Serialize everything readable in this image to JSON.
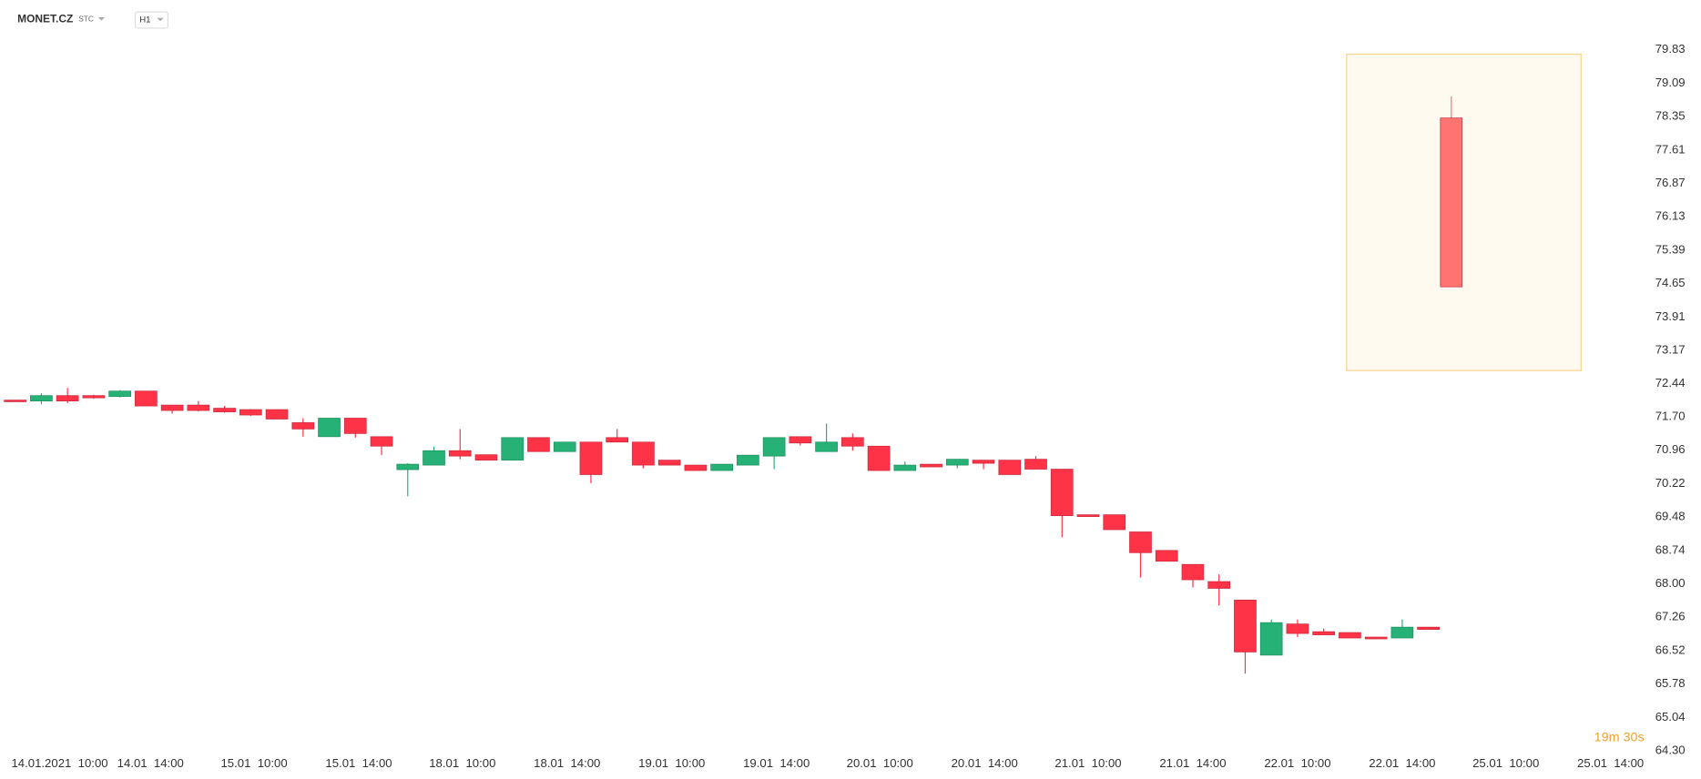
{
  "chart_data": {
    "type": "candlestick",
    "title": "MONET.CZ",
    "subtitle": "STC",
    "timeframe": "H1",
    "timer": "19m 30s",
    "up_color": "#26b276",
    "down_color": "#ff3347",
    "open": [
      72.07,
      72.05,
      72.17,
      72.17,
      72.15,
      72.27,
      71.96,
      71.96,
      71.89,
      71.86,
      71.86,
      71.57,
      71.26,
      71.67,
      71.26,
      70.53,
      70.63,
      70.95,
      70.86,
      70.74,
      71.24,
      70.93,
      71.14,
      71.24,
      71.14,
      70.74,
      70.63,
      70.51,
      70.63,
      70.83,
      71.26,
      70.93,
      71.24,
      71.05,
      70.51,
      70.65,
      70.63,
      70.74,
      70.74,
      70.76,
      70.54,
      69.53,
      69.53,
      69.15,
      68.74,
      68.43,
      68.05,
      67.64,
      66.42,
      67.11,
      66.94,
      66.92,
      66.82,
      66.8,
      67.04
    ],
    "high": [
      72.07,
      72.22,
      72.34,
      72.19,
      72.29,
      72.27,
      71.96,
      72.05,
      71.94,
      71.87,
      71.86,
      71.67,
      71.67,
      71.67,
      71.26,
      70.67,
      71.04,
      71.43,
      70.86,
      71.24,
      71.24,
      71.14,
      71.14,
      71.43,
      71.14,
      70.74,
      70.63,
      70.65,
      70.85,
      71.24,
      71.26,
      71.55,
      71.33,
      71.05,
      70.71,
      70.65,
      70.76,
      70.74,
      70.74,
      70.83,
      70.54,
      69.53,
      69.53,
      69.15,
      68.74,
      68.43,
      68.21,
      67.64,
      67.21,
      67.21,
      67.01,
      66.92,
      66.82,
      67.21,
      67.04
    ],
    "low": [
      72.04,
      71.98,
      72.0,
      72.1,
      72.13,
      71.94,
      71.77,
      71.82,
      71.79,
      71.72,
      71.65,
      71.26,
      71.26,
      71.24,
      70.85,
      69.94,
      70.63,
      70.76,
      70.74,
      70.74,
      70.93,
      70.93,
      70.23,
      71.14,
      70.56,
      70.63,
      70.51,
      70.51,
      70.63,
      70.54,
      71.07,
      70.93,
      70.95,
      70.51,
      70.51,
      70.59,
      70.56,
      70.54,
      70.42,
      70.54,
      69.03,
      69.49,
      69.2,
      68.14,
      68.5,
      67.92,
      67.52,
      66.01,
      66.42,
      66.82,
      66.87,
      66.8,
      66.78,
      66.8,
      66.99
    ],
    "close": [
      72.05,
      72.17,
      72.05,
      72.12,
      72.27,
      71.94,
      71.84,
      71.84,
      71.81,
      71.74,
      71.65,
      71.43,
      71.67,
      71.33,
      71.05,
      70.65,
      70.95,
      70.83,
      70.74,
      71.24,
      70.93,
      71.14,
      70.42,
      71.14,
      70.63,
      70.63,
      70.51,
      70.65,
      70.85,
      71.24,
      71.12,
      71.14,
      71.05,
      70.51,
      70.63,
      70.59,
      70.76,
      70.67,
      70.42,
      70.54,
      69.51,
      69.49,
      69.2,
      68.69,
      68.5,
      68.09,
      67.9,
      66.49,
      67.14,
      66.9,
      66.87,
      66.8,
      66.78,
      67.04,
      66.99
    ],
    "preview": {
      "open": 78.32,
      "high": 78.8,
      "low": 74.58,
      "close": 74.58
    },
    "ylim": [
      64.3,
      79.83
    ],
    "yticks": [
      79.83,
      79.09,
      78.35,
      77.61,
      76.87,
      76.13,
      75.39,
      74.65,
      73.91,
      73.17,
      72.44,
      {
        "value": 71.7,
        "label": "71.70"
      },
      70.96,
      70.22,
      69.48,
      68.74,
      {
        "value": 68.0,
        "label": "68.00"
      },
      67.26,
      66.52,
      65.78,
      65.04,
      {
        "value": 64.3,
        "label": "64.30"
      }
    ],
    "xlim": [
      -0.58,
      62.5
    ],
    "xticks": [
      {
        "value": 1.7,
        "label": "14.01.2021  10:00"
      },
      {
        "value": 5.17,
        "label": "14.01  14:00"
      },
      {
        "value": 9.13,
        "label": "15.01  10:00"
      },
      {
        "value": 13.13,
        "label": "15.01  14:00"
      },
      {
        "value": 17.09,
        "label": "18.01  10:00"
      },
      {
        "value": 21.09,
        "label": "18.01  14:00"
      },
      {
        "value": 25.09,
        "label": "19.01  10:00"
      },
      {
        "value": 29.09,
        "label": "19.01  14:00"
      },
      {
        "value": 33.04,
        "label": "20.01  10:00"
      },
      {
        "value": 37.04,
        "label": "20.01  14:00"
      },
      {
        "value": 41.0,
        "label": "21.01  10:00"
      },
      {
        "value": 45.0,
        "label": "21.01  14:00"
      },
      {
        "value": 49.0,
        "label": "22.01  10:00"
      },
      {
        "value": 53.0,
        "label": "22.01  14:00"
      },
      {
        "value": 56.96,
        "label": "25.01  10:00"
      },
      {
        "value": 60.96,
        "label": "25.01  14:00"
      }
    ]
  }
}
